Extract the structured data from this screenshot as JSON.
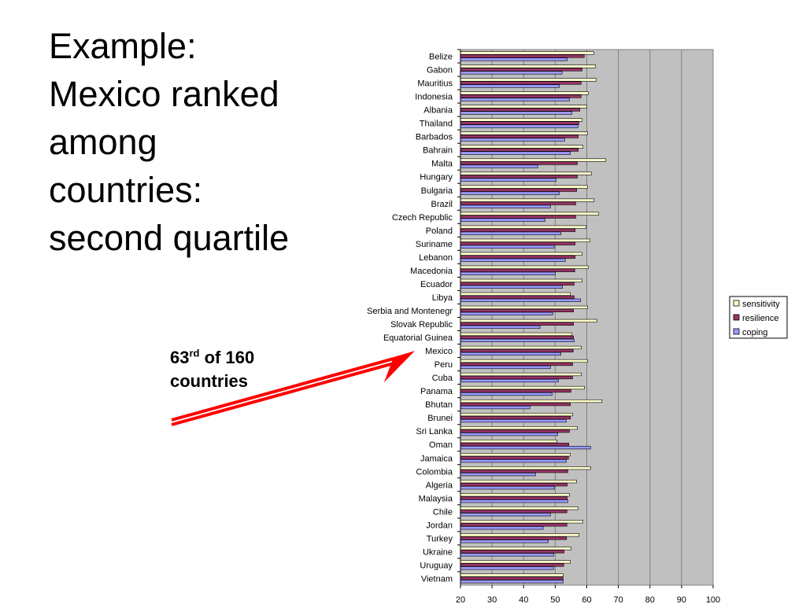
{
  "slide": {
    "title_lines": [
      "Example:",
      "Mexico ranked",
      "among",
      "countries:",
      "second quartile"
    ],
    "callout": {
      "rank": "63",
      "suffix": "rd",
      "rest": " of 160",
      "line2": "countries"
    }
  },
  "colors": {
    "sensitivity": "#ffffcc",
    "resilience": "#993366",
    "coping": "#9999ff",
    "plot_bg": "#c0c0c0",
    "arrow": "#ff0000"
  },
  "chart_data": {
    "type": "bar",
    "orientation": "horizontal",
    "categories": [
      "Belize",
      "Gabon",
      "Mauritius",
      "Indonesia",
      "Albania",
      "Thailand",
      "Barbados",
      "Bahrain",
      "Malta",
      "Hungary",
      "Bulgaria",
      "Brazil",
      "Czech Republic",
      "Poland",
      "Suriname",
      "Lebanon",
      "Macedonia",
      "Ecuador",
      "Libya",
      "Serbia and Montenegr",
      "Slovak Republic",
      "Equatorial Guinea",
      "Mexico",
      "Peru",
      "Cuba",
      "Panama",
      "Bhutan",
      "Brunei",
      "Sri Lanka",
      "Oman",
      "Jamaica",
      "Colombia",
      "Algeria",
      "Malaysia",
      "Chile",
      "Jordan",
      "Turkey",
      "Ukraine",
      "Uruguay",
      "Vietnam"
    ],
    "series": [
      {
        "name": "sensitivity",
        "values": [
          62.2,
          62.8,
          63.0,
          60.5,
          60.0,
          58.5,
          60.2,
          58.8,
          66.0,
          61.5,
          60.2,
          62.3,
          63.8,
          59.8,
          61.0,
          58.5,
          60.5,
          58.5,
          54.8,
          60.2,
          63.2,
          55.3,
          58.2,
          60.2,
          58.2,
          59.2,
          64.8,
          55.5,
          57.0,
          50.5,
          54.8,
          61.2,
          56.8,
          54.5,
          57.2,
          58.8,
          57.5,
          55.0,
          54.8,
          52.5
        ]
      },
      {
        "name": "resilience",
        "values": [
          59.2,
          58.5,
          58.2,
          58.2,
          57.8,
          57.5,
          57.3,
          57.3,
          57.0,
          57.0,
          56.8,
          56.5,
          56.5,
          56.3,
          56.3,
          56.3,
          56.2,
          56.0,
          56.0,
          55.8,
          55.8,
          55.8,
          55.7,
          55.5,
          55.5,
          55.0,
          54.8,
          54.8,
          54.5,
          54.3,
          54.2,
          54.0,
          53.8,
          53.8,
          53.7,
          53.7,
          53.6,
          52.8,
          52.7,
          52.5
        ]
      },
      {
        "name": "coping",
        "values": [
          53.8,
          52.2,
          51.3,
          54.5,
          55.3,
          57.2,
          53.0,
          54.8,
          44.5,
          50.3,
          51.3,
          48.5,
          46.8,
          51.8,
          49.7,
          53.2,
          50.0,
          52.3,
          58.0,
          49.2,
          45.2,
          56.0,
          51.8,
          48.5,
          51.0,
          49.0,
          42.0,
          53.5,
          50.8,
          61.2,
          53.5,
          43.8,
          49.8,
          54.0,
          48.5,
          46.2,
          47.8,
          49.5,
          49.5,
          52.5
        ]
      }
    ],
    "x_ticks": [
      "20",
      "30",
      "40",
      "50",
      "60",
      "70",
      "80",
      "90",
      "100"
    ],
    "xlim": [
      20,
      100
    ],
    "grid": true,
    "legend_position": "right"
  }
}
